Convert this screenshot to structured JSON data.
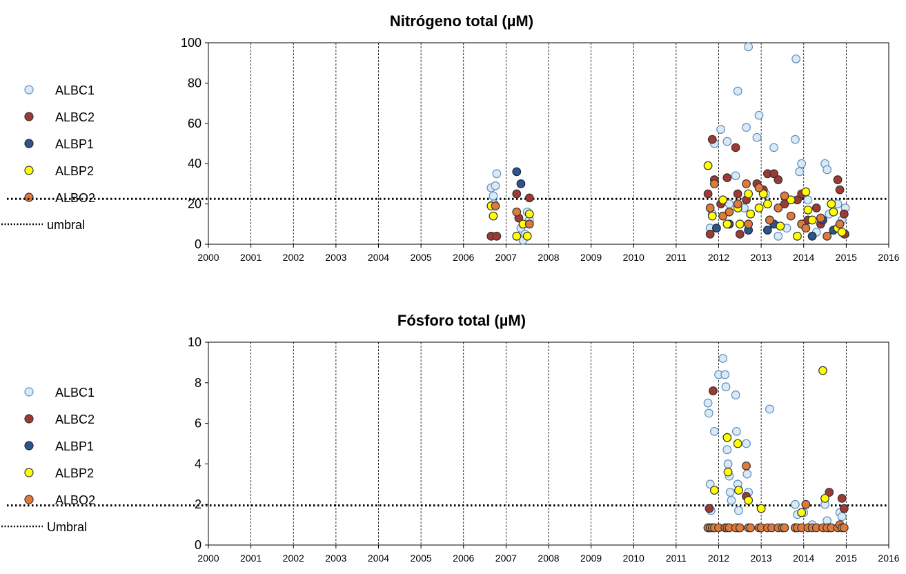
{
  "chart_data": [
    {
      "type": "scatter",
      "title": "Nitrógeno total (µM)",
      "xlabel": "",
      "ylabel": "",
      "xlim": [
        2000,
        2016
      ],
      "ylim": [
        0,
        100
      ],
      "xticks": [
        2000,
        2001,
        2002,
        2003,
        2004,
        2005,
        2006,
        2007,
        2008,
        2009,
        2010,
        2011,
        2012,
        2013,
        2014,
        2015,
        2016
      ],
      "yticks": [
        0,
        20,
        40,
        60,
        80,
        100
      ],
      "grid": "vertical dashed",
      "legend_position": "left",
      "threshold": {
        "name": "umbral",
        "value": 22.5
      },
      "series": [
        {
          "name": "ALBC1",
          "color": "#dce9f5",
          "edge": "#5b8fc2",
          "points": [
            [
              2006.65,
              28
            ],
            [
              2006.7,
              24
            ],
            [
              2006.72,
              20
            ],
            [
              2006.75,
              29
            ],
            [
              2006.78,
              35
            ],
            [
              2007.35,
              8
            ],
            [
              2007.4,
              2
            ],
            [
              2007.45,
              5
            ],
            [
              2007.5,
              16
            ],
            [
              2007.55,
              12
            ],
            [
              2011.8,
              8
            ],
            [
              2011.85,
              15
            ],
            [
              2011.9,
              50
            ],
            [
              2012.05,
              57
            ],
            [
              2012.1,
              22
            ],
            [
              2012.2,
              51
            ],
            [
              2012.25,
              20
            ],
            [
              2012.4,
              34
            ],
            [
              2012.45,
              76
            ],
            [
              2012.6,
              18
            ],
            [
              2012.65,
              58
            ],
            [
              2012.7,
              98
            ],
            [
              2012.9,
              53
            ],
            [
              2012.95,
              64
            ],
            [
              2013.1,
              25
            ],
            [
              2013.2,
              12
            ],
            [
              2013.3,
              48
            ],
            [
              2013.4,
              4
            ],
            [
              2013.6,
              8
            ],
            [
              2013.8,
              52
            ],
            [
              2013.82,
              92
            ],
            [
              2013.9,
              36
            ],
            [
              2013.95,
              40
            ],
            [
              2014.1,
              22
            ],
            [
              2014.3,
              6
            ],
            [
              2014.5,
              40
            ],
            [
              2014.55,
              37
            ],
            [
              2014.6,
              15
            ],
            [
              2014.8,
              20
            ],
            [
              2014.9,
              12
            ],
            [
              2014.95,
              5
            ],
            [
              2014.98,
              18
            ]
          ]
        },
        {
          "name": "ALBC2",
          "color": "#9e3a33",
          "edge": "#333333",
          "points": [
            [
              2006.65,
              4
            ],
            [
              2006.78,
              4
            ],
            [
              2007.25,
              25
            ],
            [
              2007.3,
              13
            ],
            [
              2007.55,
              23
            ],
            [
              2011.75,
              25
            ],
            [
              2011.8,
              5
            ],
            [
              2011.85,
              52
            ],
            [
              2011.9,
              32
            ],
            [
              2012.05,
              20
            ],
            [
              2012.2,
              33
            ],
            [
              2012.4,
              48
            ],
            [
              2012.45,
              25
            ],
            [
              2012.5,
              5
            ],
            [
              2012.65,
              22
            ],
            [
              2012.9,
              30
            ],
            [
              2013.05,
              27
            ],
            [
              2013.15,
              35
            ],
            [
              2013.3,
              35
            ],
            [
              2013.4,
              32
            ],
            [
              2013.55,
              20
            ],
            [
              2013.85,
              22
            ],
            [
              2013.95,
              25
            ],
            [
              2014.1,
              12
            ],
            [
              2014.3,
              18
            ],
            [
              2014.4,
              10
            ],
            [
              2014.8,
              32
            ],
            [
              2014.85,
              27
            ],
            [
              2014.95,
              15
            ],
            [
              2014.97,
              5
            ]
          ]
        },
        {
          "name": "ALBP1",
          "color": "#2f5487",
          "edge": "#1a2a40",
          "points": [
            [
              2007.25,
              36
            ],
            [
              2007.35,
              30
            ],
            [
              2011.95,
              8
            ],
            [
              2012.25,
              10
            ],
            [
              2012.7,
              7
            ],
            [
              2013.15,
              7
            ],
            [
              2013.3,
              10
            ],
            [
              2014.2,
              4
            ],
            [
              2014.45,
              12
            ],
            [
              2014.7,
              7
            ]
          ]
        },
        {
          "name": "ALBP2",
          "color": "#ffff00",
          "edge": "#333333",
          "points": [
            [
              2006.65,
              19
            ],
            [
              2006.7,
              14
            ],
            [
              2007.25,
              4
            ],
            [
              2007.4,
              10
            ],
            [
              2007.5,
              4
            ],
            [
              2007.55,
              15
            ],
            [
              2011.75,
              39
            ],
            [
              2011.85,
              14
            ],
            [
              2012.1,
              22
            ],
            [
              2012.2,
              10
            ],
            [
              2012.45,
              18
            ],
            [
              2012.5,
              10
            ],
            [
              2012.7,
              25
            ],
            [
              2012.75,
              15
            ],
            [
              2012.95,
              18
            ],
            [
              2013.05,
              25
            ],
            [
              2013.15,
              20
            ],
            [
              2013.45,
              9
            ],
            [
              2013.7,
              22
            ],
            [
              2013.85,
              4
            ],
            [
              2014.05,
              26
            ],
            [
              2014.1,
              17
            ],
            [
              2014.2,
              12
            ],
            [
              2014.65,
              20
            ],
            [
              2014.7,
              16
            ],
            [
              2014.8,
              8
            ],
            [
              2014.9,
              6
            ]
          ]
        },
        {
          "name": "ALBO2",
          "color": "#e07a3a",
          "edge": "#333333",
          "points": [
            [
              2006.75,
              19
            ],
            [
              2007.25,
              16
            ],
            [
              2007.55,
              10
            ],
            [
              2011.8,
              18
            ],
            [
              2011.9,
              30
            ],
            [
              2012.1,
              14
            ],
            [
              2012.25,
              16
            ],
            [
              2012.45,
              20
            ],
            [
              2012.65,
              30
            ],
            [
              2012.7,
              10
            ],
            [
              2012.95,
              28
            ],
            [
              2013.2,
              12
            ],
            [
              2013.4,
              18
            ],
            [
              2013.55,
              24
            ],
            [
              2013.7,
              14
            ],
            [
              2013.95,
              10
            ],
            [
              2014.05,
              8
            ],
            [
              2014.4,
              13
            ],
            [
              2014.55,
              4
            ],
            [
              2014.85,
              10
            ]
          ]
        }
      ]
    },
    {
      "type": "scatter",
      "title": "Fósforo total (µM)",
      "xlabel": "",
      "ylabel": "",
      "xlim": [
        2000,
        2016
      ],
      "ylim": [
        0,
        10
      ],
      "xticks": [
        2000,
        2001,
        2002,
        2003,
        2004,
        2005,
        2006,
        2007,
        2008,
        2009,
        2010,
        2011,
        2012,
        2013,
        2014,
        2015,
        2016
      ],
      "yticks": [
        0,
        2,
        4,
        6,
        8,
        10
      ],
      "grid": "vertical dashed",
      "legend_position": "left",
      "threshold": {
        "name": "Umbral",
        "value": 1.95
      },
      "series": [
        {
          "name": "ALBC1",
          "color": "#dce9f5",
          "edge": "#5b8fc2",
          "points": [
            [
              2011.75,
              7.0
            ],
            [
              2011.77,
              6.5
            ],
            [
              2011.8,
              3.0
            ],
            [
              2011.82,
              1.7
            ],
            [
              2011.9,
              5.6
            ],
            [
              2012.0,
              8.4
            ],
            [
              2012.1,
              9.2
            ],
            [
              2012.15,
              8.4
            ],
            [
              2012.17,
              7.8
            ],
            [
              2012.2,
              4.7
            ],
            [
              2012.22,
              4.0
            ],
            [
              2012.25,
              3.4
            ],
            [
              2012.27,
              2.6
            ],
            [
              2012.3,
              2.2
            ],
            [
              2012.4,
              7.4
            ],
            [
              2012.42,
              5.6
            ],
            [
              2012.45,
              3.0
            ],
            [
              2012.47,
              1.7
            ],
            [
              2012.65,
              5.0
            ],
            [
              2012.67,
              3.5
            ],
            [
              2012.7,
              2.6
            ],
            [
              2013.2,
              6.7
            ],
            [
              2013.8,
              2.0
            ],
            [
              2013.85,
              1.5
            ],
            [
              2014.0,
              1.6
            ],
            [
              2014.2,
              1.0
            ],
            [
              2014.5,
              2.0
            ],
            [
              2014.55,
              1.2
            ],
            [
              2014.85,
              1.6
            ],
            [
              2014.9,
              1.4
            ]
          ]
        },
        {
          "name": "ALBC2",
          "color": "#9e3a33",
          "edge": "#333333",
          "points": [
            [
              2011.78,
              1.8
            ],
            [
              2011.87,
              7.6
            ],
            [
              2012.65,
              2.4
            ],
            [
              2014.6,
              2.6
            ],
            [
              2014.9,
              2.3
            ],
            [
              2014.95,
              1.8
            ]
          ]
        },
        {
          "name": "ALBP1",
          "color": "#2f5487",
          "edge": "#1a2a40",
          "points": []
        },
        {
          "name": "ALBP2",
          "color": "#ffff00",
          "edge": "#333333",
          "points": [
            [
              2011.9,
              2.7
            ],
            [
              2012.2,
              5.3
            ],
            [
              2012.22,
              3.6
            ],
            [
              2012.45,
              5.0
            ],
            [
              2012.47,
              2.7
            ],
            [
              2012.7,
              2.2
            ],
            [
              2013.0,
              1.8
            ],
            [
              2013.95,
              1.6
            ],
            [
              2014.45,
              8.6
            ],
            [
              2014.5,
              2.3
            ],
            [
              2011.75,
              0.85
            ],
            [
              2012.45,
              0.85
            ],
            [
              2013.8,
              0.85
            ],
            [
              2014.6,
              0.85
            ]
          ]
        },
        {
          "name": "ALBO2",
          "color": "#e07a3a",
          "edge": "#333333",
          "points": [
            [
              2011.75,
              0.85
            ],
            [
              2011.8,
              0.85
            ],
            [
              2011.85,
              0.85
            ],
            [
              2011.9,
              0.85
            ],
            [
              2012.0,
              0.85
            ],
            [
              2012.15,
              0.85
            ],
            [
              2012.2,
              0.85
            ],
            [
              2012.25,
              0.85
            ],
            [
              2012.4,
              0.85
            ],
            [
              2012.5,
              0.85
            ],
            [
              2012.65,
              3.9
            ],
            [
              2012.7,
              0.85
            ],
            [
              2012.75,
              0.85
            ],
            [
              2012.95,
              0.85
            ],
            [
              2013.0,
              0.85
            ],
            [
              2013.15,
              0.85
            ],
            [
              2013.25,
              0.85
            ],
            [
              2013.4,
              0.85
            ],
            [
              2013.5,
              0.85
            ],
            [
              2013.55,
              0.85
            ],
            [
              2013.8,
              0.85
            ],
            [
              2013.85,
              0.85
            ],
            [
              2013.95,
              0.85
            ],
            [
              2014.05,
              2.0
            ],
            [
              2014.1,
              0.85
            ],
            [
              2014.2,
              0.85
            ],
            [
              2014.3,
              0.85
            ],
            [
              2014.45,
              0.85
            ],
            [
              2014.55,
              0.85
            ],
            [
              2014.65,
              0.85
            ],
            [
              2014.8,
              0.85
            ],
            [
              2014.85,
              1.0
            ],
            [
              2014.9,
              0.85
            ],
            [
              2014.95,
              0.85
            ]
          ]
        }
      ]
    }
  ]
}
